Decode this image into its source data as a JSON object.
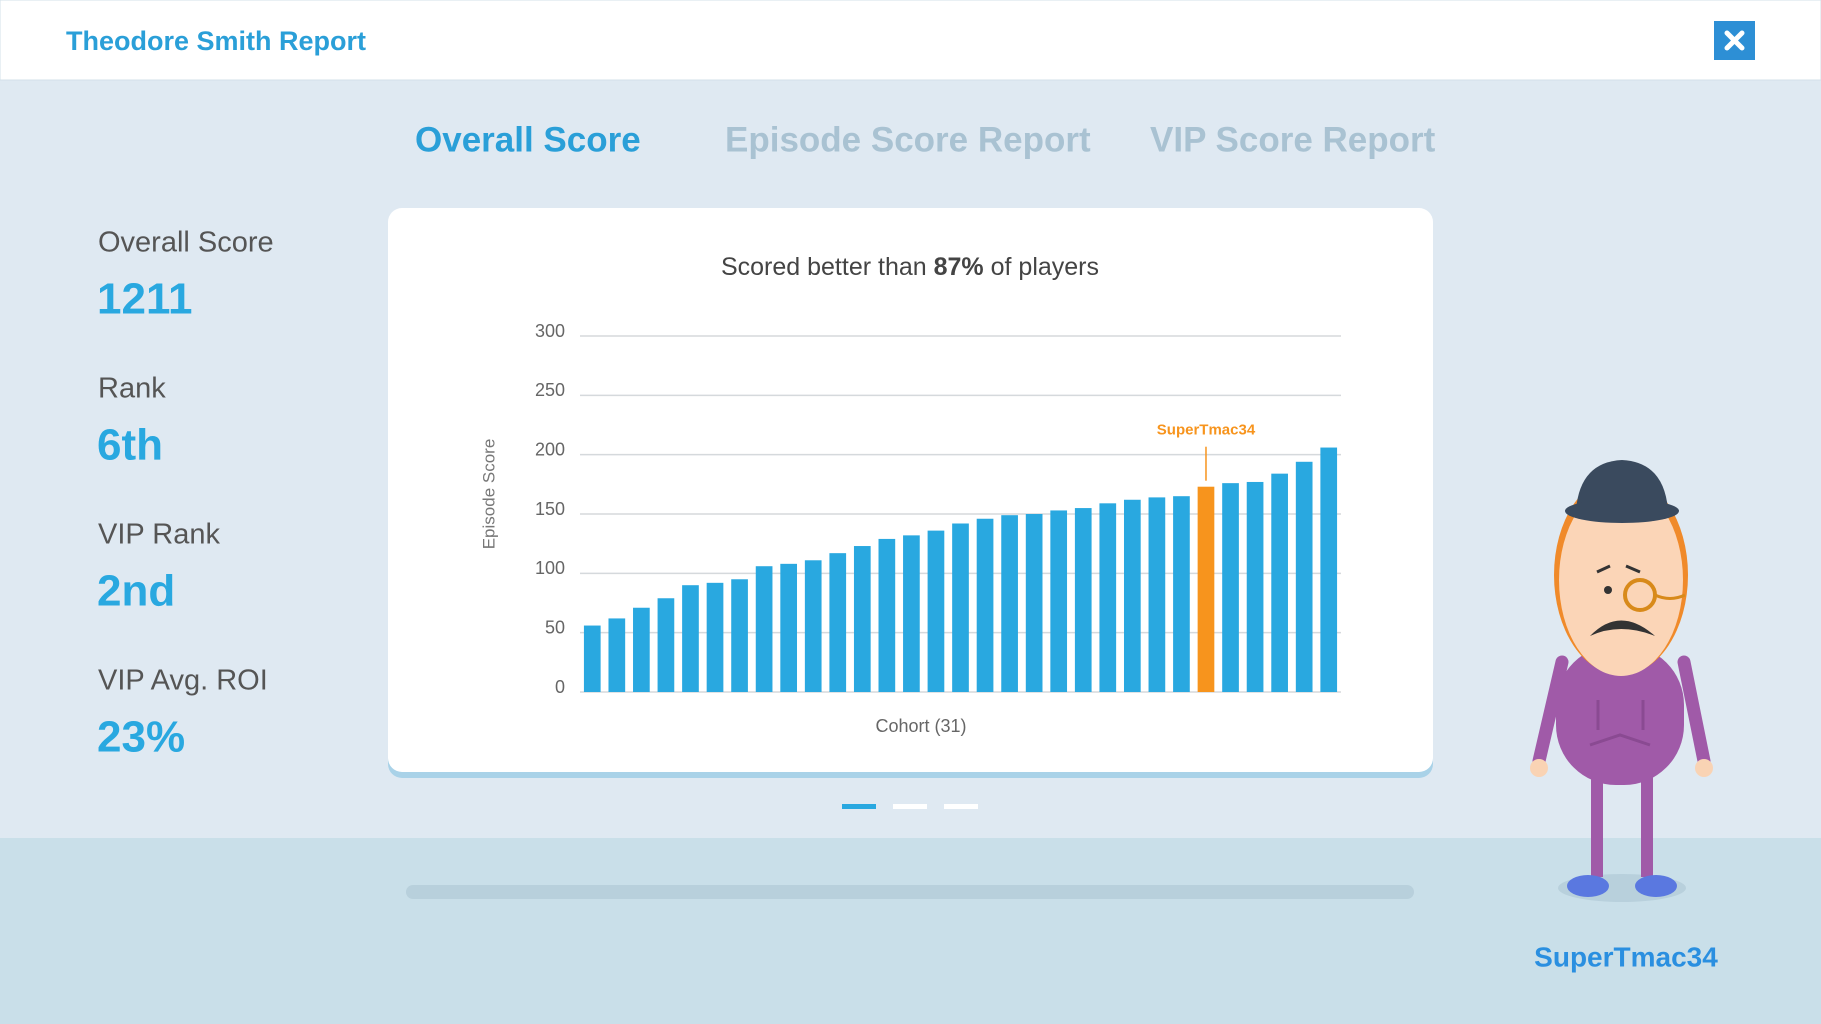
{
  "header": {
    "title": "Theodore Smith Report"
  },
  "tabs": [
    {
      "label": "Overall Score",
      "active": true
    },
    {
      "label": "Episode Score Report",
      "active": false
    },
    {
      "label": "VIP Score Report",
      "active": false
    }
  ],
  "stats": [
    {
      "label": "Overall Score",
      "value": "1211"
    },
    {
      "label": "Rank",
      "value": "6th"
    },
    {
      "label": "VIP Rank",
      "value": "2nd"
    },
    {
      "label": "VIP Avg. ROI",
      "value": "23%"
    }
  ],
  "chart_data": {
    "type": "bar",
    "title": [
      "Scored better than",
      "87%",
      "of players"
    ],
    "ylabel": "Episode Score",
    "xlabel": "Cohort (31)",
    "categories": [
      null,
      null,
      null,
      null,
      null,
      null,
      null,
      null,
      null,
      null,
      null,
      null,
      null,
      null,
      null,
      null,
      null,
      null,
      null,
      null,
      null,
      null,
      null,
      null,
      null,
      null,
      null,
      null,
      null,
      null,
      null
    ],
    "values": [
      56,
      62,
      71,
      79,
      90,
      92,
      95,
      106,
      108,
      111,
      117,
      123,
      129,
      132,
      136,
      142,
      146,
      149,
      150,
      153,
      155,
      159,
      162,
      164,
      165,
      173,
      176,
      177,
      184,
      194,
      206
    ],
    "colors": [
      "#29a8e0",
      "#29a8e0",
      "#29a8e0",
      "#29a8e0",
      "#29a8e0",
      "#29a8e0",
      "#29a8e0",
      "#29a8e0",
      "#29a8e0",
      "#29a8e0",
      "#29a8e0",
      "#29a8e0",
      "#29a8e0",
      "#29a8e0",
      "#29a8e0",
      "#29a8e0",
      "#29a8e0",
      "#29a8e0",
      "#29a8e0",
      "#29a8e0",
      "#29a8e0",
      "#29a8e0",
      "#29a8e0",
      "#29a8e0",
      "#29a8e0",
      "#f7941d",
      "#29a8e0",
      "#29a8e0",
      "#29a8e0",
      "#29a8e0",
      "#29a8e0"
    ],
    "annotation": {
      "text": "SuperTmac34",
      "color": "#f7941d"
    },
    "ylim": [
      0,
      300
    ],
    "yticks": [
      0,
      50,
      100,
      150,
      200,
      250,
      300
    ],
    "grid": true
  },
  "player": {
    "name": "SuperTmac34"
  }
}
